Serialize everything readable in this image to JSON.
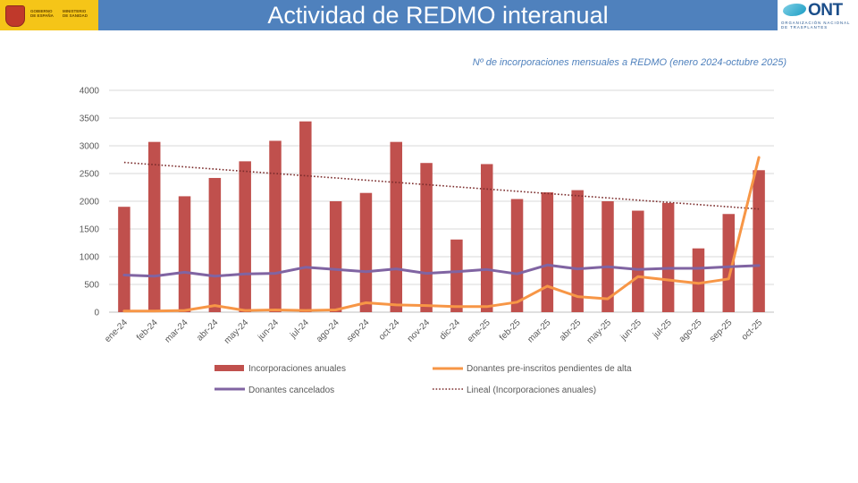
{
  "header": {
    "title": "Actividad de REDMO interanual",
    "left_logo": {
      "line1": "GOBIERNO",
      "line2": "DE ESPAÑA",
      "line3": "MINISTERIO",
      "line4": "DE SANIDAD"
    },
    "right_logo": {
      "name": "ONT",
      "sub1": "ORGANIZACIÓN NACIONAL",
      "sub2": "DE TRASPLANTES"
    }
  },
  "colors": {
    "header_bg": "#4f81bd",
    "bar": "#c0504d",
    "pending": "#f79646",
    "cancelled": "#8064a2",
    "trend": "#7b2c2c"
  },
  "chart_data": {
    "type": "bar",
    "title": "Nº de incorporaciones mensuales a REDMO (enero 2024-octubre 2025)",
    "xlabel": "",
    "ylabel": "",
    "ylim": [
      0,
      4000
    ],
    "yticks": [
      0,
      500,
      1000,
      1500,
      2000,
      2500,
      3000,
      3500,
      4000
    ],
    "grid": true,
    "legend_position": "bottom",
    "categories": [
      "ene-24",
      "feb-24",
      "mar-24",
      "abr-24",
      "may-24",
      "jun-24",
      "jul-24",
      "ago-24",
      "sep-24",
      "oct-24",
      "nov-24",
      "dic-24",
      "ene-25",
      "feb-25",
      "mar-25",
      "abr-25",
      "may-25",
      "jun-25",
      "jul-25",
      "ago-25",
      "sep-25",
      "oct-25"
    ],
    "series": [
      {
        "name": "Incorporaciones anuales",
        "kind": "bar",
        "values": [
          1900,
          3070,
          2090,
          2420,
          2720,
          3090,
          3440,
          2000,
          2150,
          3070,
          2690,
          1310,
          2670,
          2040,
          2160,
          2200,
          2000,
          1830,
          1970,
          1150,
          1770,
          2560
        ]
      },
      {
        "name": "Donantes pre-inscritos pendientes de alta",
        "kind": "line",
        "values": [
          20,
          20,
          30,
          120,
          30,
          40,
          30,
          40,
          170,
          130,
          120,
          100,
          100,
          180,
          470,
          280,
          240,
          640,
          580,
          520,
          600,
          2790
        ]
      },
      {
        "name": "Donantes cancelados",
        "kind": "line",
        "values": [
          670,
          650,
          720,
          650,
          690,
          700,
          810,
          770,
          730,
          780,
          700,
          730,
          770,
          690,
          850,
          780,
          820,
          770,
          790,
          790,
          820,
          840
        ]
      },
      {
        "name": "Lineal (Incorporaciones anuales)",
        "kind": "trend",
        "values": [
          2700,
          1860
        ]
      }
    ],
    "legend": [
      "Incorporaciones anuales",
      "Donantes pre-inscritos pendientes de alta",
      "Donantes cancelados",
      "Lineal (Incorporaciones anuales)"
    ]
  }
}
